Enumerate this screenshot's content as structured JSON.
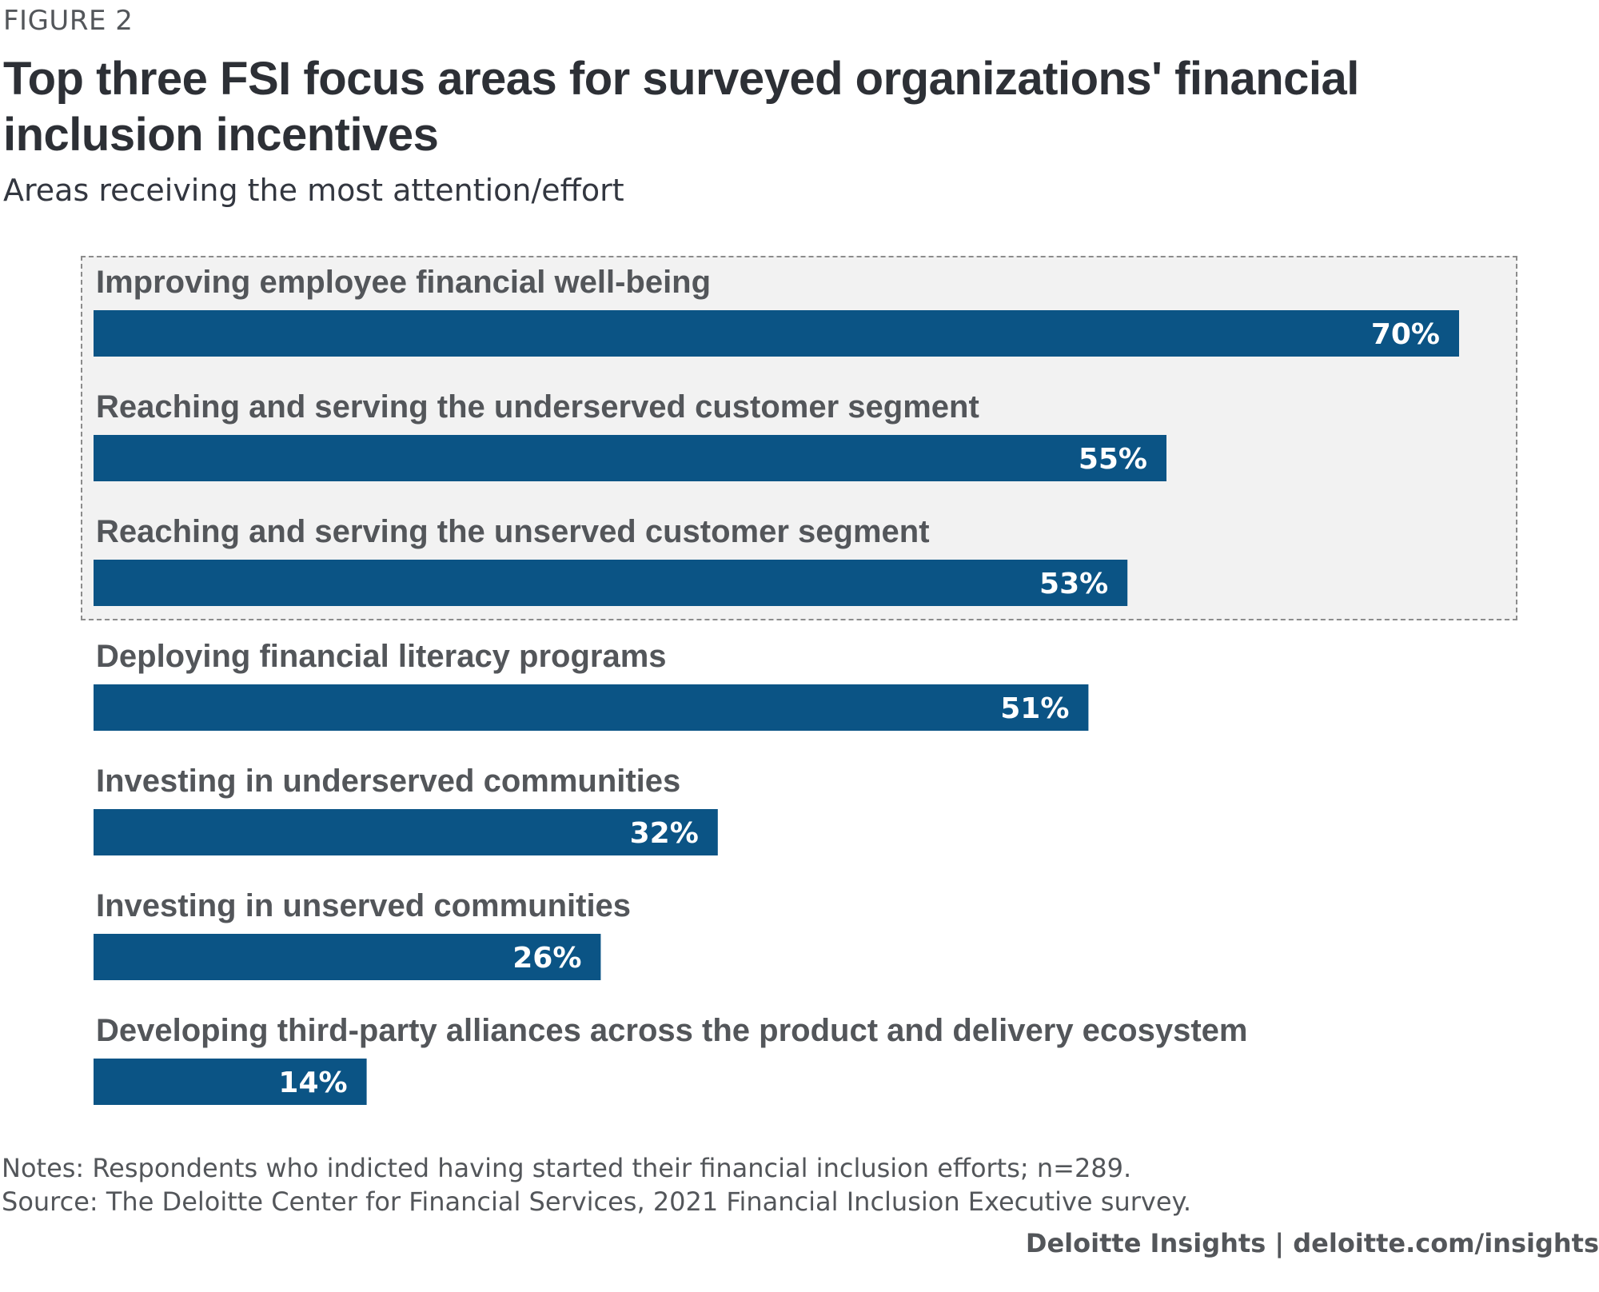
{
  "figure_label": "FIGURE 2",
  "title": "Top three FSI focus areas for surveyed organizations' financial inclusion incentives",
  "subtitle": "Areas receiving the most attention/effort",
  "notes": "Notes: Respondents who indicted having started their financial inclusion efforts; n=289.",
  "source": "Source: The Deloitte Center for Financial Services, 2021 Financial Inclusion Executive survey.",
  "credit": "Deloitte Insights | deloitte.com/insights",
  "colors": {
    "bar": "#0b5485",
    "highlight_background": "#f2f2f2",
    "highlight_border": "#8c8c8c"
  },
  "chart_data": {
    "type": "bar",
    "orientation": "horizontal",
    "categories": [
      "Improving employee financial well-being",
      "Reaching and serving the underserved customer segment",
      "Reaching and serving the unserved customer segment",
      "Deploying financial literacy programs",
      "Investing in underserved communities",
      "Investing in unserved communities",
      "Developing third-party alliances across the product and delivery ecosystem"
    ],
    "values": [
      70,
      55,
      53,
      51,
      32,
      26,
      14
    ],
    "value_labels": [
      "70%",
      "55%",
      "53%",
      "51%",
      "32%",
      "26%",
      "14%"
    ],
    "unit": "%",
    "xlim": [
      0,
      100
    ],
    "highlighted_categories": 3,
    "grid": false,
    "legend": "none"
  }
}
